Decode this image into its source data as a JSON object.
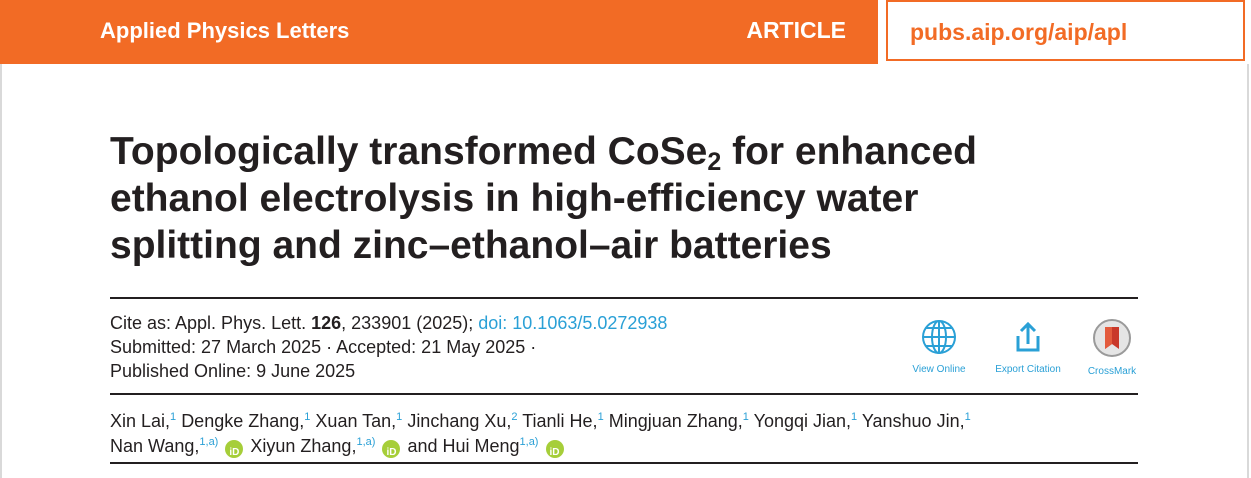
{
  "header": {
    "journal": "Applied Physics Letters",
    "article_type": "ARTICLE",
    "url": "pubs.aip.org/aip/apl"
  },
  "title": {
    "line1_pre": "Topologically transformed CoSe",
    "line1_sub": "2",
    "line1_post": " for enhanced",
    "line2": "ethanol electrolysis in high-efficiency water",
    "line3": "splitting and zinc–ethanol–air batteries"
  },
  "citation": {
    "cite_prefix": "Cite as: Appl. Phys. Lett. ",
    "volume": "126",
    "cite_suffix": ", 233901 (2025); ",
    "doi": "doi: 10.1063/5.0272938",
    "submitted_line": "Submitted: 27 March 2025 · Accepted: 21 May 2025 ·",
    "published_line": "Published Online: 9 June 2025"
  },
  "tools": {
    "view_online": "View Online",
    "export_citation": "Export Citation",
    "crossmark": "CrossMark"
  },
  "authors": {
    "line1": [
      {
        "name": "Xin Lai,",
        "aff": "1"
      },
      {
        "name": " Dengke Zhang,",
        "aff": "1"
      },
      {
        "name": " Xuan Tan,",
        "aff": "1"
      },
      {
        "name": " Jinchang Xu,",
        "aff": "2"
      },
      {
        "name": " Tianli He,",
        "aff": "1"
      },
      {
        "name": " Mingjuan Zhang,",
        "aff": "1"
      },
      {
        "name": " Yongqi Jian,",
        "aff": "1"
      },
      {
        "name": " Yanshuo Jin,",
        "aff": "1"
      }
    ],
    "line2": [
      {
        "name": "Nan Wang,",
        "aff": "1,a)"
      },
      {
        "name": " Xiyun Zhang,",
        "aff": "1,a)"
      },
      {
        "name": " and Hui Meng",
        "aff": "1,a)"
      }
    ],
    "orcid_label": "iD"
  },
  "colors": {
    "accent_orange": "#f26b25",
    "link_blue": "#2aa0d6",
    "orcid_green": "#a6ce39"
  }
}
